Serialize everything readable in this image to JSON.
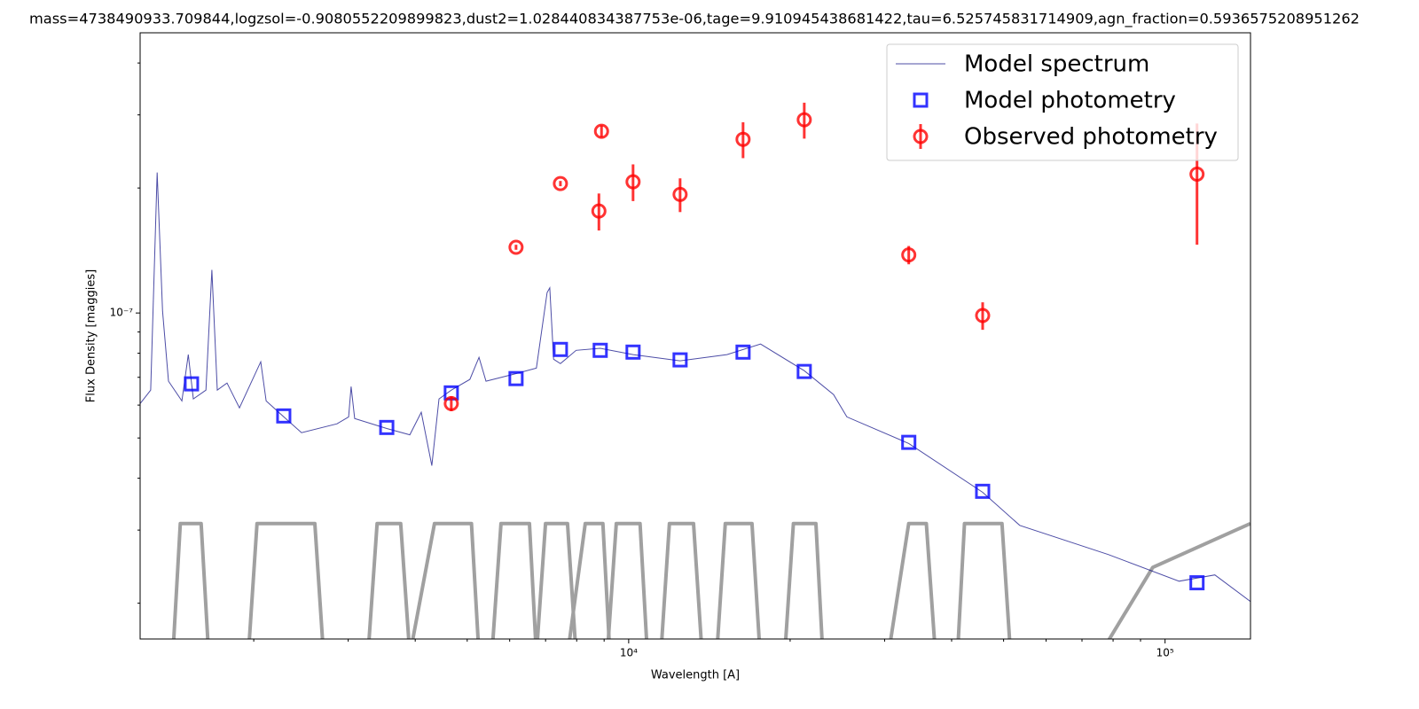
{
  "chart_data": {
    "type": "line",
    "title": "mass=4738490933.709844,logzsol=-0.9080552209899823,dust2=1.028440834387753e-06,tage=9.910945438681422,tau=6.525745831714909,agn_fraction=0.5936575208951262",
    "xlabel": "Wavelength [A]",
    "ylabel": "Flux Density [maggies]",
    "xscale": "log",
    "yscale": "log",
    "xlim": [
      1228,
      144300
    ],
    "ylim": [
      1.64e-08,
      4.73e-07
    ],
    "xticks": [
      {
        "value": 10000,
        "label": "10⁴"
      },
      {
        "value": 100000,
        "label": "10⁵"
      }
    ],
    "xminorticks": [
      2000,
      3000,
      4000,
      5000,
      6000,
      7000,
      8000,
      9000,
      20000,
      30000,
      40000,
      50000,
      60000,
      70000,
      80000,
      90000
    ],
    "yticks": [
      {
        "value": 1e-07,
        "label": "10⁻⁷"
      }
    ],
    "yminorticks": [
      2e-08,
      3e-08,
      4e-08,
      5e-08,
      6e-08,
      7e-08,
      8e-08,
      9e-08,
      2e-07,
      3e-07,
      4e-07
    ],
    "legend": "upper right",
    "series": [
      {
        "name": "Model spectrum",
        "kind": "line",
        "color": "#000080",
        "x": [
          1228,
          1285,
          1321,
          1352,
          1387,
          1469,
          1510,
          1543,
          1629,
          1671,
          1710,
          1783,
          1881,
          2061,
          2109,
          2275,
          2455,
          2859,
          3006,
          3038,
          3084,
          3540,
          3908,
          4105,
          4295,
          4430,
          4670,
          5058,
          5260,
          5420,
          6124,
          6730,
          7047,
          7128,
          7244,
          7460,
          7980,
          8850,
          10190,
          12470,
          15250,
          17620,
          21250,
          24100,
          25520,
          33280,
          45700,
          53580,
          78340,
          106200,
          123800,
          144200
        ],
        "values": [
          6.05e-08,
          6.52e-08,
          2.18e-07,
          1.01e-07,
          6.85e-08,
          6.14e-08,
          7.94e-08,
          6.21e-08,
          6.52e-08,
          1.27e-07,
          6.52e-08,
          6.78e-08,
          5.91e-08,
          7.63e-08,
          6.14e-08,
          5.62e-08,
          5.15e-08,
          5.41e-08,
          5.62e-08,
          6.65e-08,
          5.57e-08,
          5.27e-08,
          5.09e-08,
          5.77e-08,
          4.29e-08,
          6.21e-08,
          6.52e-08,
          6.92e-08,
          7.82e-08,
          6.85e-08,
          7.13e-08,
          7.37e-08,
          1.12e-07,
          1.15e-07,
          7.74e-08,
          7.55e-08,
          8.13e-08,
          8.22e-08,
          7.94e-08,
          7.67e-08,
          7.94e-08,
          8.42e-08,
          7.26e-08,
          6.36e-08,
          5.62e-08,
          4.85e-08,
          3.7e-08,
          3.08e-08,
          2.62e-08,
          2.26e-08,
          2.34e-08,
          2.02e-08
        ]
      },
      {
        "name": "Model photometry",
        "kind": "square",
        "color": "#0000ff",
        "x": [
          1531,
          2275,
          3540,
          4670,
          6166,
          7460,
          8850,
          10190,
          12470,
          16340,
          21250,
          33280,
          45700,
          114700
        ],
        "values": [
          6.75e-08,
          5.65e-08,
          5.3e-08,
          6.42e-08,
          6.95e-08,
          8.17e-08,
          8.13e-08,
          8.05e-08,
          7.71e-08,
          8.05e-08,
          7.23e-08,
          4.88e-08,
          3.72e-08,
          2.24e-08
        ]
      },
      {
        "name": "Observed photometry",
        "kind": "errorbar",
        "color": "#ff0000",
        "x": [
          4670,
          6166,
          7460,
          8800,
          8900,
          10190,
          12470,
          16340,
          21250,
          33280,
          45700,
          114700
        ],
        "values": [
          6.05e-08,
          1.44e-07,
          2.05e-07,
          1.76e-07,
          2.74e-07,
          2.07e-07,
          1.93e-07,
          2.62e-07,
          2.92e-07,
          1.38e-07,
          9.86e-08,
          2.16e-07
        ],
        "errors": [
          2.5e-09,
          2e-09,
          3e-09,
          1.8e-08,
          9e-09,
          2.1e-08,
          1.8e-08,
          2.6e-08,
          2.9e-08,
          7e-09,
          7.5e-09,
          7e-08
        ]
      }
    ],
    "filters": {
      "color": "#a0a0a0",
      "curves": [
        {
          "x": [
            1413,
            1459,
            1596,
            1648
          ],
          "values": [
            1.5e-08,
            3.11e-08,
            3.11e-08,
            1.5e-08
          ]
        },
        {
          "x": [
            1954,
            2028,
            2600,
            2698
          ],
          "values": [
            1.5e-08,
            3.11e-08,
            3.11e-08,
            1.5e-08
          ]
        },
        {
          "x": [
            3266,
            3396,
            3758,
            3908
          ],
          "values": [
            1.5e-08,
            3.11e-08,
            3.11e-08,
            1.5e-08
          ]
        },
        {
          "x": [
            3908,
            4345,
            5093,
            5260
          ],
          "values": [
            1.5e-08,
            3.11e-08,
            3.11e-08,
            1.5e-08
          ]
        },
        {
          "x": [
            5559,
            5781,
            6531,
            6730
          ],
          "values": [
            1.5e-08,
            3.11e-08,
            3.11e-08,
            1.5e-08
          ]
        },
        {
          "x": [
            6730,
            6998,
            7691,
            7980
          ],
          "values": [
            1.5e-08,
            3.11e-08,
            3.11e-08,
            1.5e-08
          ]
        },
        {
          "x": [
            7691,
            8299,
            8954,
            9226
          ],
          "values": [
            1.5e-08,
            3.11e-08,
            3.11e-08,
            1.5e-08
          ]
        },
        {
          "x": [
            9120,
            9484,
            10500,
            10840
          ],
          "values": [
            1.5e-08,
            3.11e-08,
            3.11e-08,
            1.5e-08
          ]
        },
        {
          "x": [
            11480,
            11910,
            13210,
            13710
          ],
          "values": [
            1.5e-08,
            3.11e-08,
            3.11e-08,
            1.5e-08
          ]
        },
        {
          "x": [
            14590,
            15140,
            16980,
            17580
          ],
          "values": [
            1.5e-08,
            3.11e-08,
            3.11e-08,
            1.5e-08
          ]
        },
        {
          "x": [
            19540,
            20280,
            22340,
            23010
          ],
          "values": [
            1.5e-08,
            3.11e-08,
            3.11e-08,
            1.5e-08
          ]
        },
        {
          "x": [
            30480,
            33270,
            35890,
            37330
          ],
          "values": [
            1.5e-08,
            3.11e-08,
            3.11e-08,
            1.5e-08
          ]
        },
        {
          "x": [
            41020,
            42270,
            49660,
            51520
          ],
          "values": [
            1.5e-08,
            3.11e-08,
            3.11e-08,
            1.5e-08
          ]
        },
        {
          "x": [
            75510,
            94840,
            144200
          ],
          "values": [
            1.5e-08,
            2.44e-08,
            3.11e-08
          ]
        }
      ]
    }
  }
}
